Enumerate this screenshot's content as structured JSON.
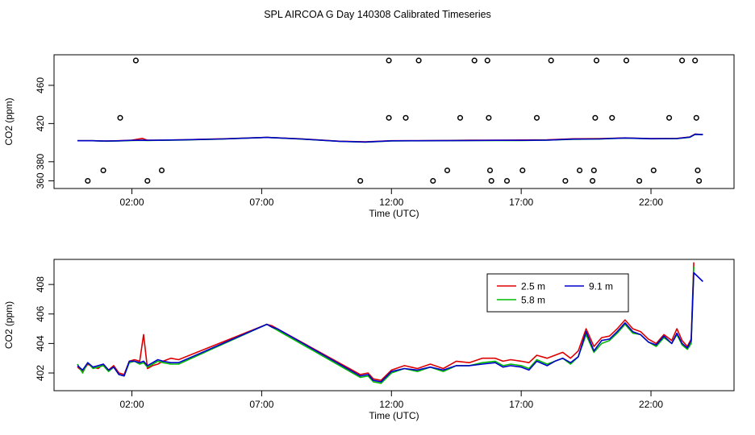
{
  "page_title": "SPL AIRCOA G  Day 140308  Calibrated Timeseries",
  "chart_data": [
    {
      "type": "line+scatter",
      "xlabel": "Time (UTC)",
      "ylabel": "CO2 (ppm)",
      "xlim": [
        -1.0,
        25.2
      ],
      "ylim": [
        352,
        492
      ],
      "xticks": [
        2,
        7,
        12,
        17,
        22
      ],
      "xtick_labels": [
        "02:00",
        "07:00",
        "12:00",
        "17:00",
        "22:00"
      ],
      "yticks": [
        360,
        380,
        420,
        460
      ],
      "ytick_labels": [
        "360",
        "380",
        "420",
        "460"
      ],
      "legend": "none",
      "grid": false,
      "series": [
        {
          "color": "#dd0000",
          "x": [
            -0.1,
            0.5,
            1.0,
            1.5,
            2.0,
            2.4,
            2.6,
            3.0,
            4.0,
            5.5,
            7.2,
            8.5,
            10.0,
            11.0,
            12.0,
            13.0,
            14.0,
            15.0,
            16.0,
            17.0,
            18.0,
            19.0,
            20.0,
            21.0,
            22.0,
            23.0,
            23.5,
            23.7,
            24.0
          ],
          "y": [
            402,
            402,
            401.8,
            402,
            402.5,
            404.5,
            402.5,
            402.5,
            403,
            404,
            405.5,
            404,
            401.5,
            400.8,
            402,
            402,
            402.3,
            402.5,
            402.6,
            402.8,
            403,
            404,
            404.2,
            405,
            404.3,
            404.5,
            406,
            409,
            408.5
          ]
        },
        {
          "color": "#00bb00",
          "x": [
            -0.1,
            0.5,
            1.0,
            1.5,
            2.0,
            2.4,
            2.6,
            3.0,
            4.0,
            5.5,
            7.2,
            8.5,
            10.0,
            11.0,
            12.0,
            13.0,
            14.0,
            15.0,
            16.0,
            17.0,
            18.0,
            19.0,
            20.0,
            21.0,
            22.0,
            23.0,
            23.5,
            23.7,
            24.0
          ],
          "y": [
            402,
            402,
            401.5,
            401.8,
            402.3,
            402.4,
            402.3,
            402.4,
            402.8,
            403.8,
            405.5,
            403.8,
            401.3,
            400.6,
            401.8,
            401.9,
            402,
            402.2,
            402.3,
            402.3,
            402.6,
            403.5,
            403.8,
            404.8,
            404,
            404.2,
            405.6,
            408.6,
            408.3
          ]
        },
        {
          "color": "#0000cc",
          "x": [
            -0.1,
            0.5,
            1.0,
            1.5,
            2.0,
            2.4,
            2.6,
            3.0,
            4.0,
            5.5,
            7.2,
            8.5,
            10.0,
            11.0,
            12.0,
            13.0,
            14.0,
            15.0,
            16.0,
            17.0,
            18.0,
            19.0,
            20.0,
            21.0,
            22.0,
            23.0,
            23.5,
            23.7,
            24.0
          ],
          "y": [
            402,
            402,
            401.7,
            401.9,
            402.4,
            402.5,
            402.4,
            402.5,
            402.9,
            403.9,
            405.5,
            403.9,
            401.4,
            400.7,
            401.9,
            402,
            402.1,
            402.3,
            402.4,
            402.4,
            402.7,
            403.7,
            403.9,
            404.9,
            404.1,
            404.3,
            405.8,
            408.8,
            408.4
          ]
        }
      ],
      "scatter": {
        "marker": "open-circle",
        "color": "#000000",
        "x": [
          0.3,
          0.9,
          1.55,
          2.15,
          2.6,
          3.15,
          10.8,
          11.9,
          11.9,
          12.55,
          13.05,
          13.6,
          14.15,
          14.65,
          15.2,
          15.7,
          15.75,
          15.8,
          15.85,
          16.45,
          17.05,
          17.6,
          18.15,
          18.7,
          19.25,
          19.75,
          19.8,
          19.85,
          19.9,
          20.5,
          21.05,
          21.55,
          22.1,
          22.7,
          23.2,
          23.7,
          23.75,
          23.8,
          23.85
        ],
        "y": [
          360,
          371,
          426,
          486,
          360,
          371,
          360,
          486,
          426,
          426,
          486,
          360,
          371,
          426,
          486,
          486,
          426,
          371,
          360,
          360,
          371,
          426,
          486,
          360,
          371,
          360,
          371,
          426,
          486,
          426,
          486,
          360,
          371,
          426,
          486,
          486,
          426,
          371,
          360
        ]
      }
    },
    {
      "type": "line",
      "xlabel": "Time (UTC)",
      "ylabel": "CO2 (ppm)",
      "xlim": [
        -1.0,
        25.2
      ],
      "ylim": [
        400.8,
        409.7
      ],
      "xticks": [
        2,
        7,
        12,
        17,
        22
      ],
      "xtick_labels": [
        "02:00",
        "07:00",
        "12:00",
        "17:00",
        "22:00"
      ],
      "yticks": [
        402,
        404,
        406,
        408
      ],
      "ytick_labels": [
        "402",
        "404",
        "406",
        "408"
      ],
      "legend": "top-right",
      "grid": false,
      "series": [
        {
          "name": "2.5 m",
          "color": "#dd0000",
          "x": [
            -0.1,
            0.1,
            0.3,
            0.5,
            0.7,
            0.9,
            1.1,
            1.3,
            1.5,
            1.7,
            1.9,
            2.1,
            2.3,
            2.45,
            2.6,
            2.8,
            3.0,
            3.2,
            3.5,
            3.8,
            7.2,
            7.4,
            7.6,
            10.8,
            11.1,
            11.3,
            11.6,
            12.0,
            12.5,
            13.0,
            13.5,
            14.0,
            14.5,
            15.0,
            15.5,
            16.0,
            16.3,
            16.6,
            17.0,
            17.3,
            17.6,
            18.0,
            18.3,
            18.6,
            18.9,
            19.2,
            19.5,
            19.8,
            20.1,
            20.4,
            20.7,
            21.0,
            21.3,
            21.6,
            21.9,
            22.2,
            22.5,
            22.8,
            23.0,
            23.2,
            23.4,
            23.55,
            23.65
          ],
          "y": [
            402.4,
            402.1,
            402.6,
            402.4,
            402.3,
            402.6,
            402.2,
            402.5,
            402.0,
            401.9,
            402.8,
            402.9,
            402.8,
            404.6,
            402.3,
            402.5,
            402.6,
            402.8,
            403.0,
            402.9,
            405.3,
            405.2,
            405.0,
            401.9,
            402.0,
            401.6,
            401.5,
            402.2,
            402.5,
            402.3,
            402.6,
            402.3,
            402.8,
            402.7,
            403.0,
            403.0,
            402.8,
            402.9,
            402.8,
            402.7,
            403.2,
            403.0,
            403.2,
            403.4,
            403.0,
            403.5,
            405.0,
            403.8,
            404.4,
            404.5,
            405.0,
            405.6,
            405.0,
            404.8,
            404.3,
            404.0,
            404.6,
            404.2,
            405.0,
            404.2,
            403.8,
            404.3,
            409.5
          ]
        },
        {
          "name": "5.8 m",
          "color": "#00bb00",
          "x": [
            -0.1,
            0.1,
            0.3,
            0.5,
            0.7,
            0.9,
            1.1,
            1.3,
            1.5,
            1.7,
            1.9,
            2.1,
            2.3,
            2.45,
            2.6,
            2.8,
            3.0,
            3.2,
            3.5,
            3.8,
            7.2,
            7.4,
            7.6,
            10.8,
            11.1,
            11.3,
            11.6,
            12.0,
            12.5,
            13.0,
            13.5,
            14.0,
            14.5,
            15.0,
            15.5,
            16.0,
            16.3,
            16.6,
            17.0,
            17.3,
            17.6,
            18.0,
            18.3,
            18.6,
            18.9,
            19.2,
            19.5,
            19.8,
            20.1,
            20.4,
            20.7,
            21.0,
            21.3,
            21.6,
            21.9,
            22.2,
            22.5,
            22.8,
            23.0,
            23.2,
            23.4,
            23.55,
            23.65
          ],
          "y": [
            402.6,
            402.0,
            402.7,
            402.3,
            402.4,
            402.5,
            402.1,
            402.4,
            401.9,
            401.8,
            402.7,
            402.8,
            402.6,
            402.7,
            402.4,
            402.6,
            402.8,
            402.7,
            402.6,
            402.6,
            405.3,
            405.1,
            404.9,
            401.7,
            401.8,
            401.4,
            401.3,
            402.0,
            402.3,
            402.1,
            402.4,
            402.1,
            402.5,
            402.5,
            402.7,
            402.8,
            402.5,
            402.6,
            402.5,
            402.3,
            402.9,
            402.6,
            402.8,
            403.0,
            402.6,
            403.1,
            404.6,
            403.4,
            404.0,
            404.2,
            404.7,
            405.3,
            404.7,
            404.6,
            404.1,
            403.8,
            404.4,
            404.0,
            404.6,
            403.9,
            403.6,
            404.0,
            409.2
          ]
        },
        {
          "name": "9.1 m",
          "color": "#0000cc",
          "x": [
            -0.1,
            0.1,
            0.3,
            0.5,
            0.7,
            0.9,
            1.1,
            1.3,
            1.5,
            1.7,
            1.9,
            2.1,
            2.3,
            2.45,
            2.6,
            2.8,
            3.0,
            3.2,
            3.5,
            3.8,
            7.2,
            7.4,
            7.6,
            10.8,
            11.1,
            11.3,
            11.6,
            12.0,
            12.5,
            13.0,
            13.5,
            14.0,
            14.5,
            15.0,
            15.5,
            16.0,
            16.3,
            16.6,
            17.0,
            17.3,
            17.6,
            18.0,
            18.3,
            18.6,
            18.9,
            19.2,
            19.5,
            19.8,
            20.1,
            20.4,
            20.7,
            21.0,
            21.3,
            21.6,
            21.9,
            22.2,
            22.5,
            22.8,
            23.0,
            23.2,
            23.4,
            23.55,
            23.65,
            24.0
          ],
          "y": [
            402.5,
            402.2,
            402.7,
            402.4,
            402.5,
            402.6,
            402.2,
            402.4,
            401.9,
            401.8,
            402.8,
            402.8,
            402.7,
            402.8,
            402.5,
            402.7,
            402.9,
            402.8,
            402.7,
            402.7,
            405.3,
            405.1,
            405.0,
            401.8,
            401.9,
            401.5,
            401.4,
            402.1,
            402.3,
            402.2,
            402.4,
            402.2,
            402.5,
            402.5,
            402.6,
            402.7,
            402.4,
            402.5,
            402.4,
            402.2,
            402.8,
            402.5,
            402.8,
            403.0,
            402.7,
            403.1,
            404.8,
            403.5,
            404.2,
            404.3,
            404.8,
            405.4,
            404.8,
            404.6,
            404.1,
            403.9,
            404.5,
            404.0,
            404.7,
            404.0,
            403.7,
            404.2,
            408.8,
            408.2
          ]
        }
      ]
    }
  ]
}
